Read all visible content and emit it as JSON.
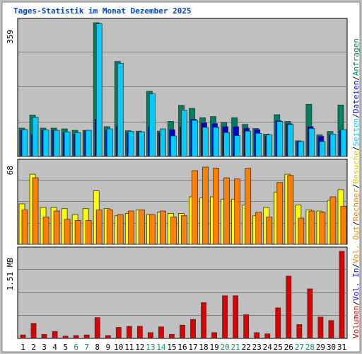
{
  "chart_data": {
    "type": "bar",
    "title": "Tages-Statistik im Monat Dezember 2025",
    "colors": {
      "background": "#ffffff",
      "frame": "#c0c0c0",
      "plot": "#c0c0c0",
      "grid": "#808080",
      "title": "#0044cc",
      "text": "#000000",
      "weekend": "#009966",
      "anfragen": "#007f5f",
      "dateien": "#0000cc",
      "seiten": "#00ccff",
      "besuche": "#ffff00",
      "rechner": "#ff8000",
      "volumen": "#dd0000",
      "vol_in": "#0000ff",
      "vol_out": "#ff8000"
    },
    "categories": [
      "1",
      "2",
      "3",
      "4",
      "5",
      "6",
      "7",
      "8",
      "9",
      "10",
      "11",
      "12",
      "13",
      "14",
      "15",
      "16",
      "17",
      "18",
      "19",
      "20",
      "21",
      "22",
      "23",
      "24",
      "25",
      "26",
      "27",
      "28",
      "29",
      "30",
      "31"
    ],
    "weekend_days": [
      "6",
      "7",
      "13",
      "14",
      "20",
      "21",
      "27",
      "28"
    ],
    "panels": [
      {
        "id": "hits",
        "y_top_label": "359",
        "ylim": [
          0,
          359
        ],
        "series": [
          {
            "name": "Anfragen",
            "color": "#007f5f",
            "values": [
              76,
              111,
              76,
              76,
              74,
              70,
              70,
              359,
              80,
              255,
              69,
              68,
              175,
              68,
              94,
              137,
              129,
              104,
              107,
              91,
              104,
              86,
              75,
              60,
              112,
              94,
              42,
              140,
              58,
              67,
              138
            ]
          },
          {
            "name": "Dateien",
            "color": "#0000cc",
            "values": [
              70,
              60,
              70,
              70,
              64,
              60,
              68,
              100,
              70,
              80,
              64,
              65,
              80,
              64,
              72,
              80,
              100,
              90,
              88,
              80,
              80,
              76,
              72,
              54,
              96,
              88,
              40,
              80,
              54,
              58,
              70
            ]
          },
          {
            "name": "Seiten",
            "color": "#00ccff",
            "values": [
              72,
              105,
              71,
              70,
              66,
              64,
              70,
              356,
              74,
              250,
              67,
              66,
              168,
              74,
              55,
              124,
              97,
              78,
              78,
              64,
              56,
              68,
              62,
              58,
              94,
              86,
              40,
              75,
              40,
              60,
              72
            ]
          }
        ]
      },
      {
        "id": "visits",
        "y_top_label": "68",
        "ylim": [
          0,
          68
        ],
        "series": [
          {
            "name": "Besuche",
            "color": "#ffff00",
            "values": [
              34,
              59,
              31,
              31,
              30,
              25,
              30,
              45,
              30,
              24,
              26,
              29,
              25,
              27,
              26,
              26,
              40,
              39,
              40,
              38,
              38,
              33,
              24,
              31,
              44,
              59,
              33,
              29,
              28,
              37,
              46
            ]
          },
          {
            "name": "Rechner",
            "color": "#ff8000",
            "values": [
              29,
              56,
              23,
              28,
              21,
              20,
              20,
              29,
              29,
              25,
              28,
              29,
              25,
              28,
              23,
              24,
              62,
              65,
              64,
              56,
              55,
              64,
              27,
              23,
              52,
              58,
              22,
              28,
              27,
              40,
              32
            ]
          }
        ]
      },
      {
        "id": "volume",
        "y_top_label": "1.51 MB",
        "ylim": [
          0,
          1.51
        ],
        "series": [
          {
            "name": "Volumen",
            "color": "#dd0000",
            "values": [
              0.06,
              0.26,
              0.07,
              0.12,
              0.04,
              0.05,
              0.06,
              0.36,
              0.05,
              0.19,
              0.21,
              0.21,
              0.1,
              0.2,
              0.07,
              0.23,
              0.33,
              0.62,
              0.1,
              0.74,
              0.74,
              0.41,
              0.1,
              0.08,
              0.53,
              1.08,
              0.24,
              0.86,
              0.37,
              0.31,
              1.51
            ]
          }
        ]
      }
    ],
    "legend_right": [
      {
        "text": "Volumen",
        "color": "#dd0000"
      },
      {
        "text": "/",
        "color": "#000000"
      },
      {
        "text": "Vol. In",
        "color": "#0000ff"
      },
      {
        "text": "/",
        "color": "#000000"
      },
      {
        "text": "Vol. Out",
        "color": "#ff8000"
      },
      {
        "text": "/",
        "color": "#000000"
      },
      {
        "text": "Rechner",
        "color": "#ff8000"
      },
      {
        "text": "/",
        "color": "#000000"
      },
      {
        "text": "Besuche",
        "color": "#cccc00"
      },
      {
        "text": "/",
        "color": "#000000"
      },
      {
        "text": "Seiten",
        "color": "#00ccff"
      },
      {
        "text": "/",
        "color": "#000000"
      },
      {
        "text": "Dateien",
        "color": "#0000cc"
      },
      {
        "text": "/",
        "color": "#000000"
      },
      {
        "text": "Anfragen",
        "color": "#007f5f"
      }
    ],
    "grid": true
  }
}
